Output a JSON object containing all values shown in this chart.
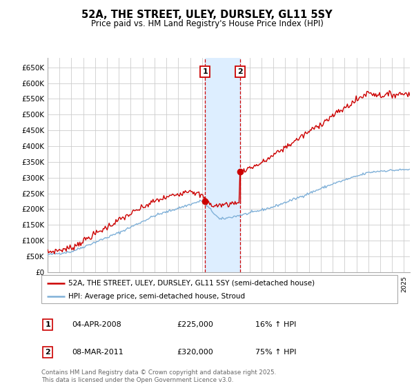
{
  "title": "52A, THE STREET, ULEY, DURSLEY, GL11 5SY",
  "subtitle": "Price paid vs. HM Land Registry's House Price Index (HPI)",
  "ylabel_ticks": [
    "£0",
    "£50K",
    "£100K",
    "£150K",
    "£200K",
    "£250K",
    "£300K",
    "£350K",
    "£400K",
    "£450K",
    "£500K",
    "£550K",
    "£600K",
    "£650K"
  ],
  "ytick_values": [
    0,
    50000,
    100000,
    150000,
    200000,
    250000,
    300000,
    350000,
    400000,
    450000,
    500000,
    550000,
    600000,
    650000
  ],
  "ylim": [
    0,
    680000
  ],
  "transaction1_date": "04-APR-2008",
  "transaction1_price": 225000,
  "transaction1_hpi": "16% ↑ HPI",
  "transaction1_year": 2008.27,
  "transaction2_date": "08-MAR-2011",
  "transaction2_price": 320000,
  "transaction2_hpi": "75% ↑ HPI",
  "transaction2_year": 2011.19,
  "legend_label1": "52A, THE STREET, ULEY, DURSLEY, GL11 5SY (semi-detached house)",
  "legend_label2": "HPI: Average price, semi-detached house, Stroud",
  "footer": "Contains HM Land Registry data © Crown copyright and database right 2025.\nThis data is licensed under the Open Government Licence v3.0.",
  "line1_color": "#cc0000",
  "line2_color": "#7fb0d8",
  "grid_color": "#cccccc",
  "bg_color": "#ffffff",
  "highlight_color": "#ddeeff",
  "box_color": "#cc0000"
}
